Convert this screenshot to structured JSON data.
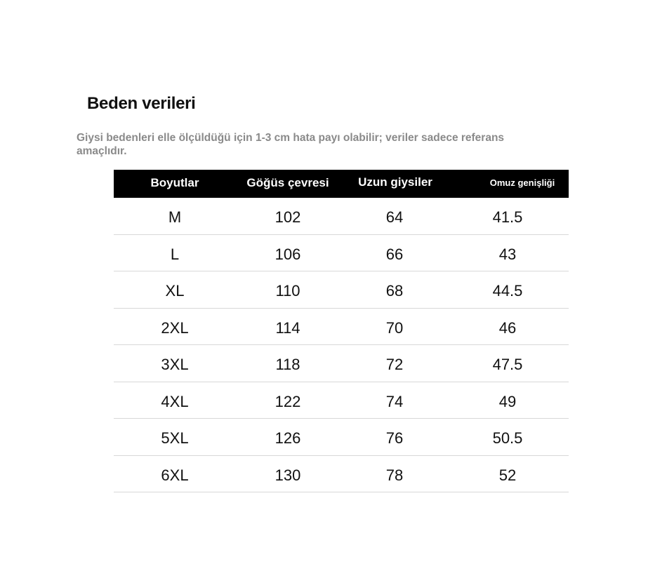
{
  "title": "Beden verileri",
  "note": "Giysi bedenleri elle ölçüldüğü için 1-3 cm hata payı olabilir; veriler sadece referans amaçlıdır.",
  "table": {
    "headers": [
      "Boyutlar",
      "Göğüs çevresi",
      "Uzun giysiler",
      "Omuz genişliği"
    ],
    "rows": [
      [
        "M",
        "102",
        "64",
        "41.5"
      ],
      [
        "L",
        "106",
        "66",
        "43"
      ],
      [
        "XL",
        "110",
        "68",
        "44.5"
      ],
      [
        "2XL",
        "114",
        "70",
        "46"
      ],
      [
        "3XL",
        "118",
        "72",
        "47.5"
      ],
      [
        "4XL",
        "122",
        "74",
        "49"
      ],
      [
        "5XL",
        "126",
        "76",
        "50.5"
      ],
      [
        "6XL",
        "130",
        "78",
        "52"
      ]
    ]
  }
}
